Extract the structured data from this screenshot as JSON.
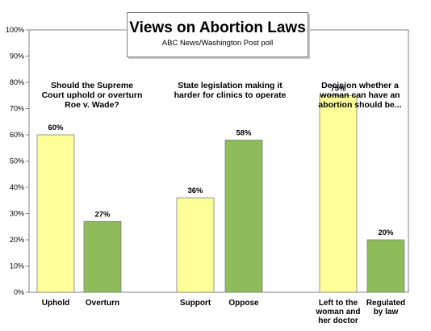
{
  "chart_data": {
    "type": "bar",
    "title": "Views on Abortion Laws",
    "subtitle": "ABC News/Washington Post poll",
    "ylim": [
      0,
      100
    ],
    "y_ticks": [
      "0%",
      "10%",
      "20%",
      "30%",
      "40%",
      "50%",
      "60%",
      "70%",
      "80%",
      "90%",
      "100%"
    ],
    "grid": false,
    "groups": [
      {
        "question": "Should the Supreme Court uphold or overturn Roe v. Wade?",
        "question_lines": [
          "Should the Supreme",
          "Court uphold or overturn",
          "Roe v. Wade?"
        ],
        "bars": [
          {
            "label_lines": [
              "Uphold"
            ],
            "value": 60,
            "value_label": "60%",
            "color": "#ffff99"
          },
          {
            "label_lines": [
              "Overturn"
            ],
            "value": 27,
            "value_label": "27%",
            "color": "#8fbc5a"
          }
        ]
      },
      {
        "question": "State legislation making it harder for clinics to operate",
        "question_lines": [
          "State legislation making it",
          "harder for clinics to operate"
        ],
        "bars": [
          {
            "label_lines": [
              "Support"
            ],
            "value": 36,
            "value_label": "36%",
            "color": "#ffff99"
          },
          {
            "label_lines": [
              "Oppose"
            ],
            "value": 58,
            "value_label": "58%",
            "color": "#8fbc5a"
          }
        ]
      },
      {
        "question": "Decision whether a woman can have an abortion should be...",
        "question_lines": [
          "Decision whether a",
          "woman can have an",
          "abortion should be..."
        ],
        "bars": [
          {
            "label_lines": [
              "Left to the",
              "woman and",
              "her doctor"
            ],
            "value": 75,
            "value_label": "75%",
            "color": "#ffff99"
          },
          {
            "label_lines": [
              "Regulated",
              "by law"
            ],
            "value": 20,
            "value_label": "20%",
            "color": "#8fbc5a"
          }
        ]
      }
    ]
  }
}
